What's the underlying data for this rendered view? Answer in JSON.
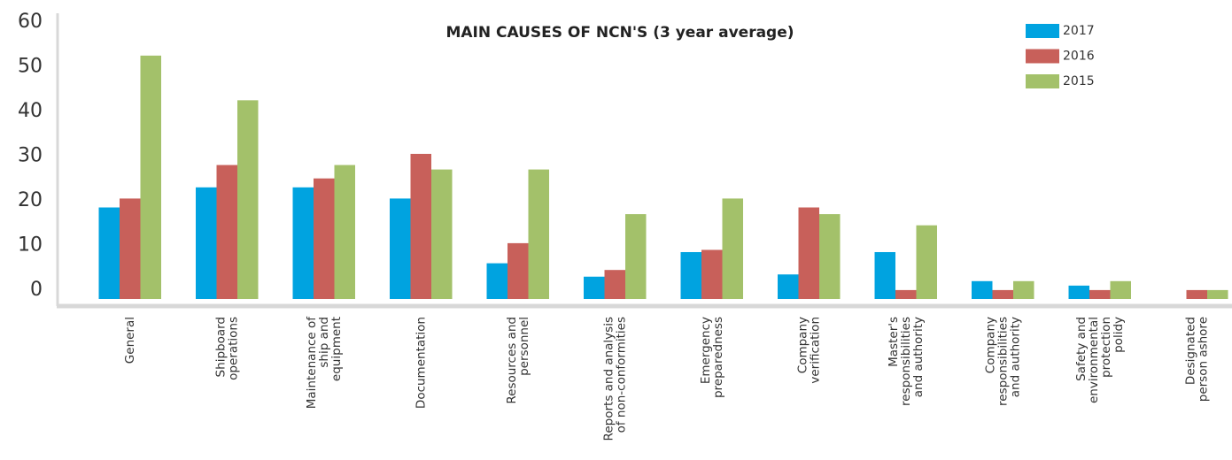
{
  "chart_data": {
    "type": "bar",
    "title": "MAIN CAUSES OF NCN'S (3 year average)",
    "categories": [
      "General",
      "Shipboard\noperations",
      "Maintenance of\nship and\nequipment",
      "Documentation",
      "Resources and\npersonnel",
      "Reports and analysis\nof non-conformities",
      "Emergency\npreparedness",
      "Company\nverification",
      "Master's\nresponsibilities\nand authority",
      "Company\nresponsibilities\nand authority",
      "Safety and\nenvironmental\nprotection\npolidy",
      "Designated\nperson ashore"
    ],
    "series": [
      {
        "name": "2017",
        "color": "#00a3e0",
        "values": [
          18.5,
          23,
          23,
          20.5,
          6,
          3,
          8.5,
          3.5,
          8.5,
          2,
          1,
          null
        ]
      },
      {
        "name": "2016",
        "color": "#c8605a",
        "values": [
          20.5,
          28,
          25,
          30.5,
          10.5,
          4.5,
          9,
          18.5,
          0,
          0,
          0,
          0
        ]
      },
      {
        "name": "2015",
        "color": "#a3c16a",
        "values": [
          52.5,
          42.5,
          28,
          27,
          27,
          17,
          20.5,
          17,
          14.5,
          2,
          2,
          0
        ]
      }
    ],
    "ylim": [
      -2,
      60
    ],
    "yticks": [
      0,
      10,
      20,
      30,
      40,
      50,
      60
    ],
    "grid": false,
    "legend": "top-right"
  }
}
